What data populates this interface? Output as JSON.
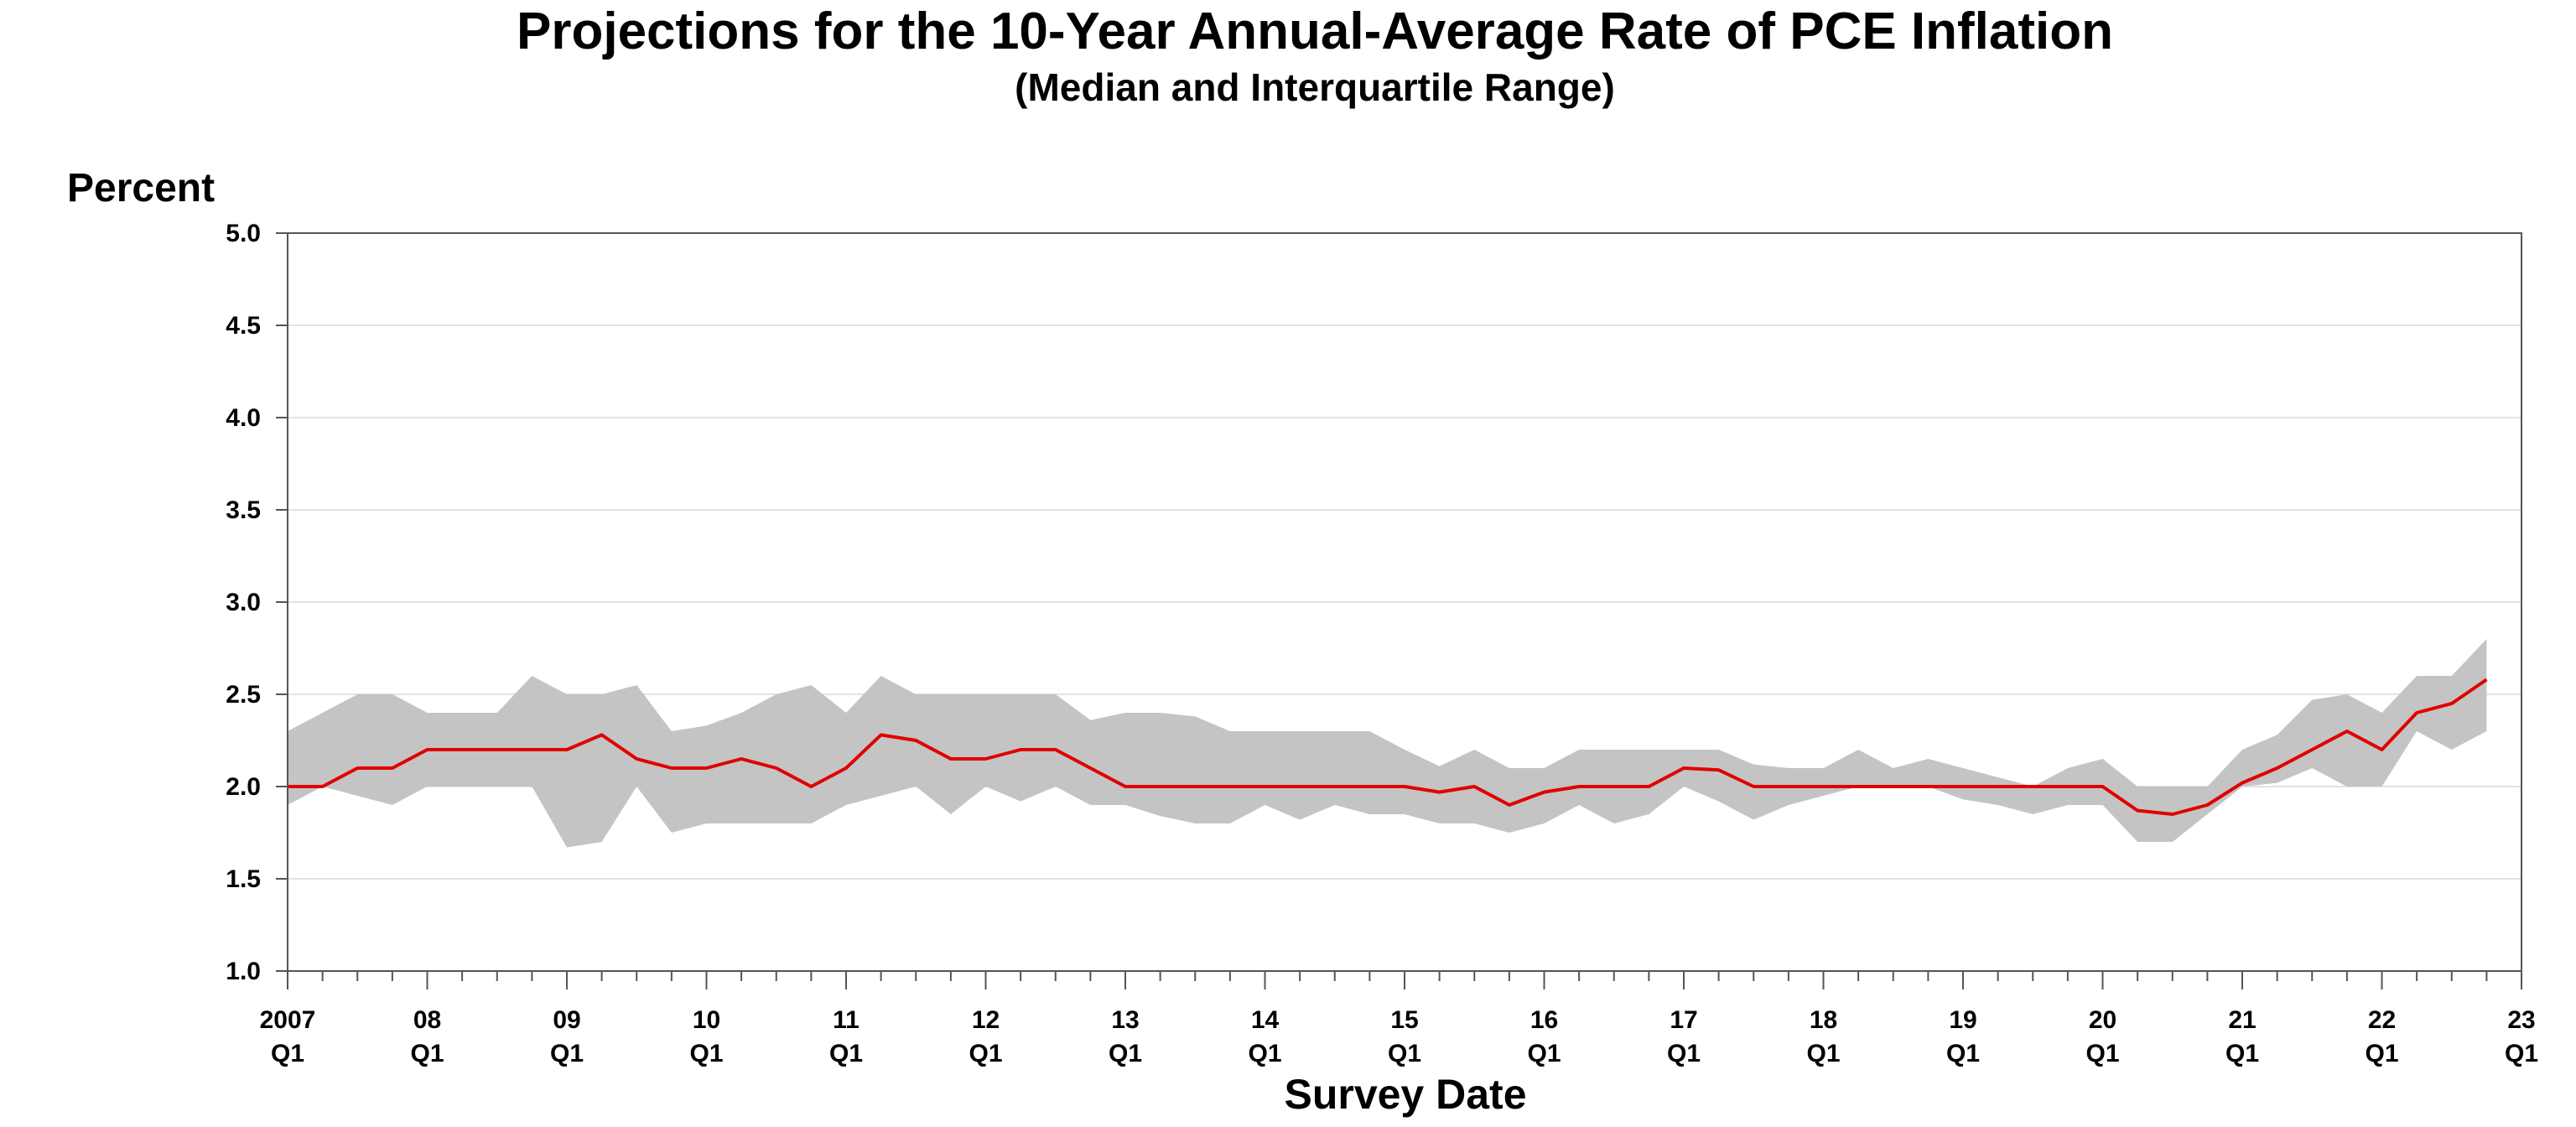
{
  "chart_data": {
    "type": "area",
    "title": "Projections for the 10-Year Annual-Average Rate of PCE Inflation",
    "subtitle": "(Median and Interquartile Range)",
    "ylabel": "Percent",
    "xlabel": "Survey Date",
    "ylim": [
      1.0,
      5.0
    ],
    "xlim": [
      2007.0,
      2023.0
    ],
    "y_ticks": [
      "1.0",
      "1.5",
      "2.0",
      "2.5",
      "3.0",
      "3.5",
      "4.0",
      "4.5",
      "5.0"
    ],
    "x_ticks": [
      {
        "year": "2007",
        "quarter": "Q1"
      },
      {
        "year": "08",
        "quarter": "Q1"
      },
      {
        "year": "09",
        "quarter": "Q1"
      },
      {
        "year": "10",
        "quarter": "Q1"
      },
      {
        "year": "11",
        "quarter": "Q1"
      },
      {
        "year": "12",
        "quarter": "Q1"
      },
      {
        "year": "13",
        "quarter": "Q1"
      },
      {
        "year": "14",
        "quarter": "Q1"
      },
      {
        "year": "15",
        "quarter": "Q1"
      },
      {
        "year": "16",
        "quarter": "Q1"
      },
      {
        "year": "17",
        "quarter": "Q1"
      },
      {
        "year": "18",
        "quarter": "Q1"
      },
      {
        "year": "19",
        "quarter": "Q1"
      },
      {
        "year": "20",
        "quarter": "Q1"
      },
      {
        "year": "21",
        "quarter": "Q1"
      },
      {
        "year": "22",
        "quarter": "Q1"
      },
      {
        "year": "23",
        "quarter": "Q1"
      }
    ],
    "grid": true,
    "colors": {
      "median": "#e00000",
      "range": "#c4c4c4",
      "grid": "#d9d9d9",
      "axis": "#555555"
    },
    "x": [
      "2007Q1",
      "2007Q2",
      "2007Q3",
      "2007Q4",
      "2008Q1",
      "2008Q2",
      "2008Q3",
      "2008Q4",
      "2009Q1",
      "2009Q2",
      "2009Q3",
      "2009Q4",
      "2010Q1",
      "2010Q2",
      "2010Q3",
      "2010Q4",
      "2011Q1",
      "2011Q2",
      "2011Q3",
      "2011Q4",
      "2012Q1",
      "2012Q2",
      "2012Q3",
      "2012Q4",
      "2013Q1",
      "2013Q2",
      "2013Q3",
      "2013Q4",
      "2014Q1",
      "2014Q2",
      "2014Q3",
      "2014Q4",
      "2015Q1",
      "2015Q2",
      "2015Q3",
      "2015Q4",
      "2016Q1",
      "2016Q2",
      "2016Q3",
      "2016Q4",
      "2017Q1",
      "2017Q2",
      "2017Q3",
      "2017Q4",
      "2018Q1",
      "2018Q2",
      "2018Q3",
      "2018Q4",
      "2019Q1",
      "2019Q2",
      "2019Q3",
      "2019Q4",
      "2020Q1",
      "2020Q2",
      "2020Q3",
      "2020Q4",
      "2021Q1",
      "2021Q2",
      "2021Q3",
      "2021Q4",
      "2022Q1",
      "2022Q2",
      "2022Q3",
      "2022Q4"
    ],
    "series": [
      {
        "role": "median",
        "values": [
          2.0,
          2.0,
          2.1,
          2.1,
          2.2,
          2.2,
          2.2,
          2.2,
          2.2,
          2.28,
          2.15,
          2.1,
          2.1,
          2.15,
          2.1,
          2.0,
          2.1,
          2.28,
          2.25,
          2.15,
          2.15,
          2.2,
          2.2,
          2.1,
          2.0,
          2.0,
          2.0,
          2.0,
          2.0,
          2.0,
          2.0,
          2.0,
          2.0,
          1.97,
          2.0,
          1.9,
          1.97,
          2.0,
          2.0,
          2.0,
          2.1,
          2.09,
          2.0,
          2.0,
          2.0,
          2.0,
          2.0,
          2.0,
          2.0,
          2.0,
          2.0,
          2.0,
          2.0,
          1.87,
          1.85,
          1.9,
          2.02,
          2.1,
          2.2,
          2.3,
          2.2,
          2.4,
          2.45,
          2.58
        ]
      },
      {
        "role": "25th percentile",
        "values": [
          1.9,
          2.0,
          1.95,
          1.9,
          2.0,
          2.0,
          2.0,
          2.0,
          1.67,
          1.7,
          2.0,
          1.75,
          1.8,
          1.8,
          1.8,
          1.8,
          1.9,
          1.95,
          2.0,
          1.85,
          2.0,
          1.92,
          2.0,
          1.9,
          1.9,
          1.84,
          1.8,
          1.8,
          1.9,
          1.82,
          1.9,
          1.85,
          1.85,
          1.8,
          1.8,
          1.75,
          1.8,
          1.9,
          1.8,
          1.85,
          2.0,
          1.92,
          1.82,
          1.9,
          1.95,
          2.0,
          2.0,
          2.0,
          1.93,
          1.9,
          1.85,
          1.9,
          1.9,
          1.7,
          1.7,
          1.85,
          2.0,
          2.02,
          2.1,
          2.0,
          2.0,
          2.3,
          2.2,
          2.3
        ]
      },
      {
        "role": "75th percentile",
        "values": [
          2.3,
          2.4,
          2.5,
          2.5,
          2.4,
          2.4,
          2.4,
          2.6,
          2.5,
          2.5,
          2.55,
          2.3,
          2.33,
          2.4,
          2.5,
          2.55,
          2.4,
          2.6,
          2.5,
          2.5,
          2.5,
          2.5,
          2.5,
          2.36,
          2.4,
          2.4,
          2.38,
          2.3,
          2.3,
          2.3,
          2.3,
          2.3,
          2.2,
          2.11,
          2.2,
          2.1,
          2.1,
          2.2,
          2.2,
          2.2,
          2.2,
          2.2,
          2.12,
          2.1,
          2.1,
          2.2,
          2.1,
          2.15,
          2.1,
          2.05,
          2.0,
          2.1,
          2.15,
          2.0,
          2.0,
          2.0,
          2.2,
          2.28,
          2.47,
          2.5,
          2.4,
          2.6,
          2.6,
          2.8
        ]
      }
    ]
  }
}
